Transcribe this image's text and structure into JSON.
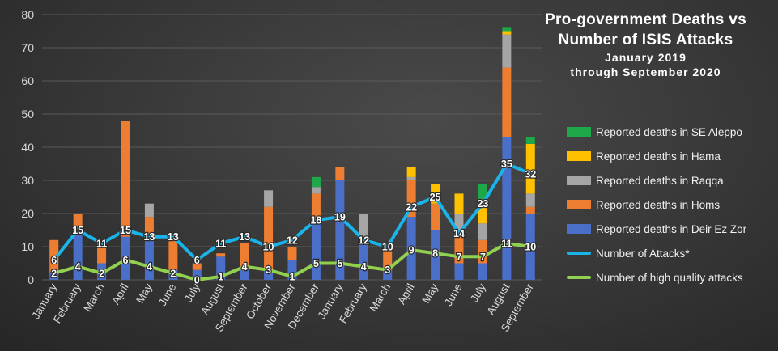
{
  "title": {
    "line1": "Pro-government Deaths vs",
    "line2": "Number of ISIS Attacks",
    "line3": "January 2019",
    "line4": "through September 2020"
  },
  "colors": {
    "deir": "#4a6fc9",
    "homs": "#ed7d31",
    "raqqa": "#a5a5a5",
    "hama": "#ffc000",
    "aleppo": "#1fa84a",
    "attacks": "#1ab4ea",
    "hq": "#92d050",
    "grid": "#5a5a5a",
    "axis_text": "#d9d9d9"
  },
  "chart_data": {
    "type": "bar",
    "stacked": true,
    "categories": [
      "January",
      "February",
      "March",
      "April",
      "May",
      "June",
      "July",
      "August",
      "September",
      "October",
      "November",
      "December",
      "January",
      "February",
      "March",
      "April",
      "May",
      "June",
      "July",
      "August",
      "September"
    ],
    "ylim": [
      0,
      80
    ],
    "yticks": [
      0,
      10,
      20,
      30,
      40,
      50,
      60,
      70,
      80
    ],
    "grid": true,
    "legend_position": "right",
    "series": [
      {
        "name": "Reported deaths in Deir Ez Zor",
        "kind": "bar",
        "color_key": "deir",
        "values": [
          2,
          14,
          5,
          13,
          14,
          3,
          3,
          7,
          3,
          3,
          6,
          18,
          30,
          11,
          3,
          19,
          15,
          5,
          5,
          43,
          20
        ]
      },
      {
        "name": "Reported deaths in Homs",
        "kind": "bar",
        "color_key": "homs",
        "values": [
          10,
          6,
          6,
          35,
          5,
          10,
          2,
          1,
          8,
          19,
          4,
          8,
          4,
          1,
          6,
          11,
          8,
          8,
          7,
          21,
          2
        ]
      },
      {
        "name": "Reported deaths in Raqqa",
        "kind": "bar",
        "color_key": "raqqa",
        "values": [
          0,
          0,
          0,
          0,
          4,
          0,
          0,
          0,
          0,
          5,
          0,
          2,
          0,
          8,
          0,
          1,
          0,
          7,
          5,
          10,
          4
        ]
      },
      {
        "name": "Reported deaths in Hama",
        "kind": "bar",
        "color_key": "hama",
        "values": [
          0,
          0,
          0,
          0,
          0,
          0,
          0,
          0,
          0,
          0,
          0,
          0,
          0,
          0,
          0,
          3,
          6,
          6,
          5,
          1,
          15
        ]
      },
      {
        "name": "Reported deaths in SE Aleppo",
        "kind": "bar",
        "color_key": "aleppo",
        "values": [
          0,
          0,
          0,
          0,
          0,
          0,
          0,
          0,
          0,
          0,
          0,
          3,
          0,
          0,
          0,
          0,
          0,
          0,
          7,
          1,
          2
        ]
      },
      {
        "name": "Number of Attacks*",
        "kind": "line",
        "color_key": "attacks",
        "values": [
          6,
          15,
          11,
          15,
          13,
          13,
          6,
          11,
          13,
          10,
          12,
          18,
          19,
          12,
          10,
          22,
          25,
          14,
          23,
          35,
          32
        ]
      },
      {
        "name": "Number of high quality attacks",
        "kind": "line",
        "color_key": "hq",
        "values": [
          2,
          4,
          2,
          6,
          4,
          2,
          0,
          1,
          4,
          3,
          1,
          5,
          5,
          4,
          3,
          9,
          8,
          7,
          7,
          11,
          10
        ]
      }
    ]
  }
}
